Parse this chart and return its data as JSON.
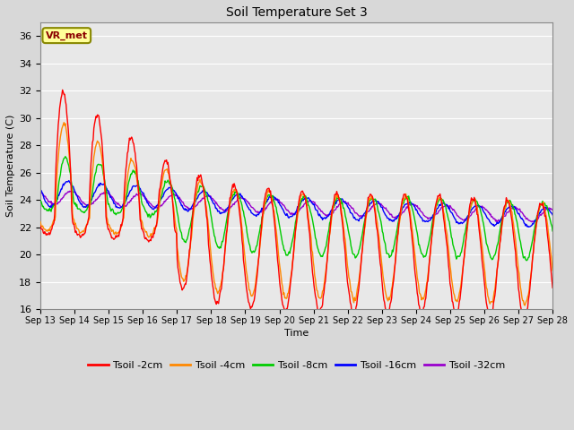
{
  "title": "Soil Temperature Set 3",
  "xlabel": "Time",
  "ylabel": "Soil Temperature (C)",
  "ylim": [
    16,
    37
  ],
  "yticks": [
    16,
    18,
    20,
    22,
    24,
    26,
    28,
    30,
    32,
    34,
    36
  ],
  "x_labels": [
    "Sep 13",
    "Sep 14",
    "Sep 15",
    "Sep 16",
    "Sep 17",
    "Sep 18",
    "Sep 19",
    "Sep 20",
    "Sep 21",
    "Sep 22",
    "Sep 23",
    "Sep 24",
    "Sep 25",
    "Sep 26",
    "Sep 27",
    "Sep 28"
  ],
  "annotation_text": "VR_met",
  "colors": {
    "Tsoil -2cm": "#ff0000",
    "Tsoil -4cm": "#ff8800",
    "Tsoil -8cm": "#00cc00",
    "Tsoil -16cm": "#0000ff",
    "Tsoil -32cm": "#9900cc"
  },
  "bg_color": "#e8e8e8",
  "grid_color": "#ffffff",
  "fig_width": 6.4,
  "fig_height": 4.8,
  "dpi": 100
}
